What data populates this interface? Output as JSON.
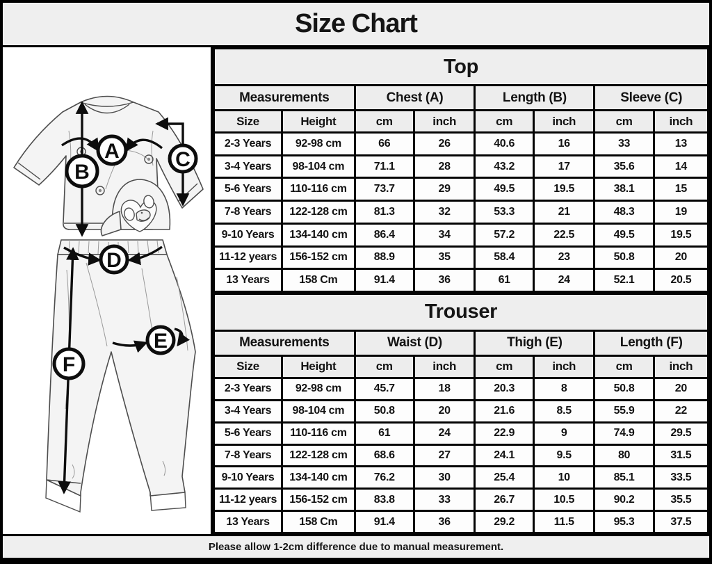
{
  "page": {
    "title": "Size Chart",
    "footer_note": "Please allow 1-2cm difference due to manual measurement."
  },
  "colors": {
    "border": "#000000",
    "header_bg": "#ededed",
    "cell_bg": "#fdfdfd",
    "text": "#131313"
  },
  "diagram": {
    "description": "Line-art sketch of kids pajama set (penguin top and trousers) with circled measurement markers",
    "labels": [
      "A",
      "B",
      "C",
      "D",
      "E",
      "F"
    ]
  },
  "chart_data": [
    {
      "type": "table",
      "title": "Top",
      "group_headers": [
        "Measurements",
        "Chest (A)",
        "Length (B)",
        "Sleeve (C)"
      ],
      "sub_headers": [
        "Size",
        "Height",
        "cm",
        "inch",
        "cm",
        "inch",
        "cm",
        "inch"
      ],
      "rows": [
        [
          "2-3 Years",
          "92-98 cm",
          66,
          26,
          40.6,
          16,
          33,
          13
        ],
        [
          "3-4 Years",
          "98-104 cm",
          71.1,
          28,
          43.2,
          17,
          35.6,
          14
        ],
        [
          "5-6 Years",
          "110-116 cm",
          73.7,
          29,
          49.5,
          19.5,
          38.1,
          15
        ],
        [
          "7-8 Years",
          "122-128 cm",
          81.3,
          32,
          53.3,
          21,
          48.3,
          19
        ],
        [
          "9-10 Years",
          "134-140 cm",
          86.4,
          34,
          57.2,
          22.5,
          49.5,
          19.5
        ],
        [
          "11-12 years",
          "156-152 cm",
          88.9,
          35,
          58.4,
          23,
          50.8,
          20
        ],
        [
          "13 Years",
          "158 Cm",
          91.4,
          36,
          61,
          24,
          52.1,
          20.5
        ]
      ]
    },
    {
      "type": "table",
      "title": "Trouser",
      "group_headers": [
        "Measurements",
        "Waist (D)",
        "Thigh (E)",
        "Length (F)"
      ],
      "sub_headers": [
        "Size",
        "Height",
        "cm",
        "inch",
        "cm",
        "inch",
        "cm",
        "inch"
      ],
      "rows": [
        [
          "2-3 Years",
          "92-98 cm",
          45.7,
          18,
          20.3,
          8,
          50.8,
          20
        ],
        [
          "3-4 Years",
          "98-104 cm",
          50.8,
          20,
          21.6,
          8.5,
          55.9,
          22
        ],
        [
          "5-6 Years",
          "110-116 cm",
          61,
          24,
          22.9,
          9,
          74.9,
          29.5
        ],
        [
          "7-8 Years",
          "122-128 cm",
          68.6,
          27,
          24.1,
          9.5,
          80,
          31.5
        ],
        [
          "9-10 Years",
          "134-140 cm",
          76.2,
          30,
          25.4,
          10,
          85.1,
          33.5
        ],
        [
          "11-12 years",
          "156-152 cm",
          83.8,
          33,
          26.7,
          10.5,
          90.2,
          35.5
        ],
        [
          "13 Years",
          "158 Cm",
          91.4,
          36,
          29.2,
          11.5,
          95.3,
          37.5
        ]
      ]
    }
  ]
}
